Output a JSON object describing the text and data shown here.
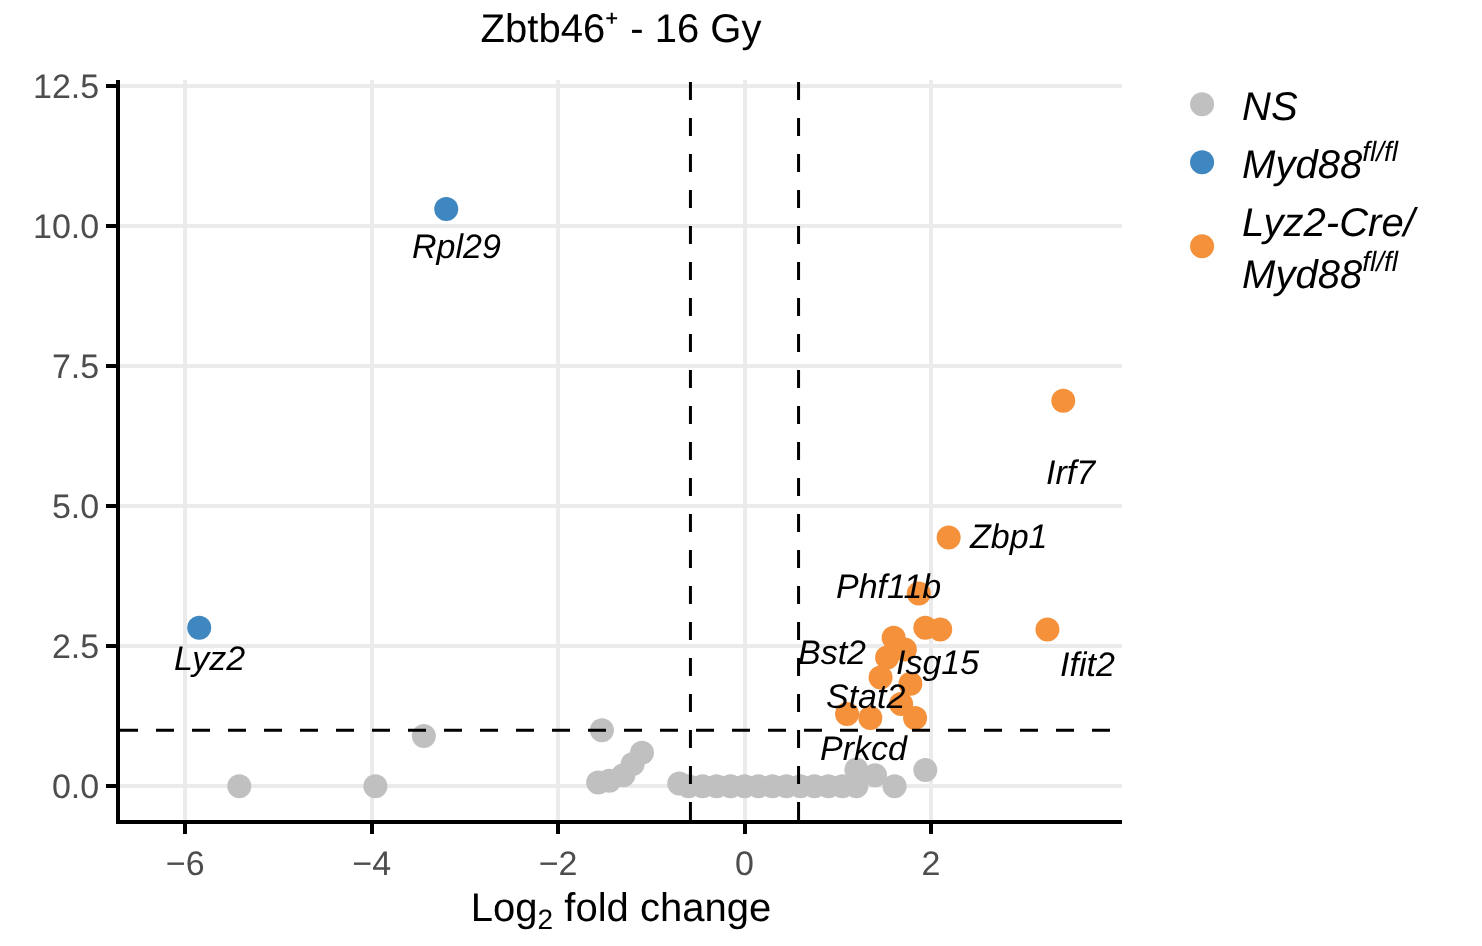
{
  "chart_data": {
    "type": "scatter",
    "title": "Zbtb46⁺ - 16 Gy",
    "xlabel": "Log$_{2}$ fold change",
    "xlim": [
      -6.7,
      4.05
    ],
    "xticks": [
      {
        "value": -6,
        "label": "−6"
      },
      {
        "value": -4,
        "label": "−4"
      },
      {
        "value": -2,
        "label": "−2"
      },
      0,
      2
    ],
    "ylim": [
      -0.6,
      12.6
    ],
    "yticks": [
      {
        "value": 0,
        "label": "0.0"
      },
      2.5,
      {
        "value": 5,
        "label": "5.0"
      },
      7.5,
      {
        "value": 10,
        "label": "10.0"
      },
      12.5
    ],
    "grid": true,
    "legend": "top right",
    "marker": "circle",
    "series": [
      {
        "name": "NS",
        "color": "#c0c0c0",
        "x": [
          -5.42,
          -3.96,
          -3.44,
          -1.53,
          -1.57,
          -1.45,
          -1.3,
          -1.2,
          -1.1,
          -0.7,
          -0.6,
          -0.45,
          -0.3,
          -0.15,
          0.0,
          0.15,
          0.3,
          0.45,
          0.6,
          0.75,
          0.9,
          1.05,
          1.2,
          1.4,
          1.61,
          1.94,
          1.2
        ],
        "values": [
          0.0,
          0.0,
          0.9,
          1.0,
          0.07,
          0.1,
          0.2,
          0.4,
          0.6,
          0.05,
          0.0,
          0.0,
          0.0,
          0.0,
          0.0,
          0.0,
          0.0,
          0.0,
          0.0,
          0.0,
          0.0,
          0.0,
          0.0,
          0.2,
          0.0,
          0.29,
          0.3
        ]
      },
      {
        "name": "Myd88$^{fl/fl}$",
        "color": "#3f87c0",
        "x": [
          -3.2,
          -5.85
        ],
        "values": [
          10.3,
          2.83
        ]
      },
      {
        "name": "Lyz2-Cre/\nMyd88$^{fl/fl}$",
        "color": "#f4913a",
        "x": [
          3.42,
          2.19,
          3.25,
          1.87,
          1.94,
          2.1,
          1.6,
          1.53,
          1.72,
          1.46,
          1.78,
          1.68,
          1.1,
          1.35,
          1.83
        ],
        "values": [
          6.88,
          4.44,
          2.8,
          3.44,
          2.83,
          2.8,
          2.65,
          2.3,
          2.44,
          1.94,
          1.83,
          1.47,
          1.29,
          1.22,
          1.22
        ]
      }
    ],
    "ref_lines": [
      {
        "axis": "x",
        "value": -0.58,
        "line_style": "dashed",
        "color": "#000000"
      },
      {
        "axis": "x",
        "value": 0.58,
        "line_style": "dashed",
        "color": "#000000"
      },
      {
        "axis": "y",
        "value": 1.0,
        "line_style": "dashed",
        "color": "#000000"
      }
    ],
    "annotations": [
      {
        "text": "Rpl29",
        "x": -3.2,
        "y": 10.3
      },
      {
        "text": "Lyz2",
        "x": -5.85,
        "y": 2.83
      },
      {
        "text": "Irf7",
        "x": 3.42,
        "y": 6.88
      },
      {
        "text": "Zbp1",
        "x": 2.19,
        "y": 4.44
      },
      {
        "text": "Ifit2",
        "x": 3.25,
        "y": 2.8
      },
      {
        "text": "Phf11b",
        "x": 1.87,
        "y": 3.44
      },
      {
        "text": "Isg15",
        "x": 2.04,
        "y": 3.0
      },
      {
        "text": "Bst2",
        "x": 1.6,
        "y": 2.65
      },
      {
        "text": "Stat2",
        "x": 1.68,
        "y": 1.47
      },
      {
        "text": "Prkcd",
        "x": 1.2,
        "y": 0.3
      }
    ]
  }
}
